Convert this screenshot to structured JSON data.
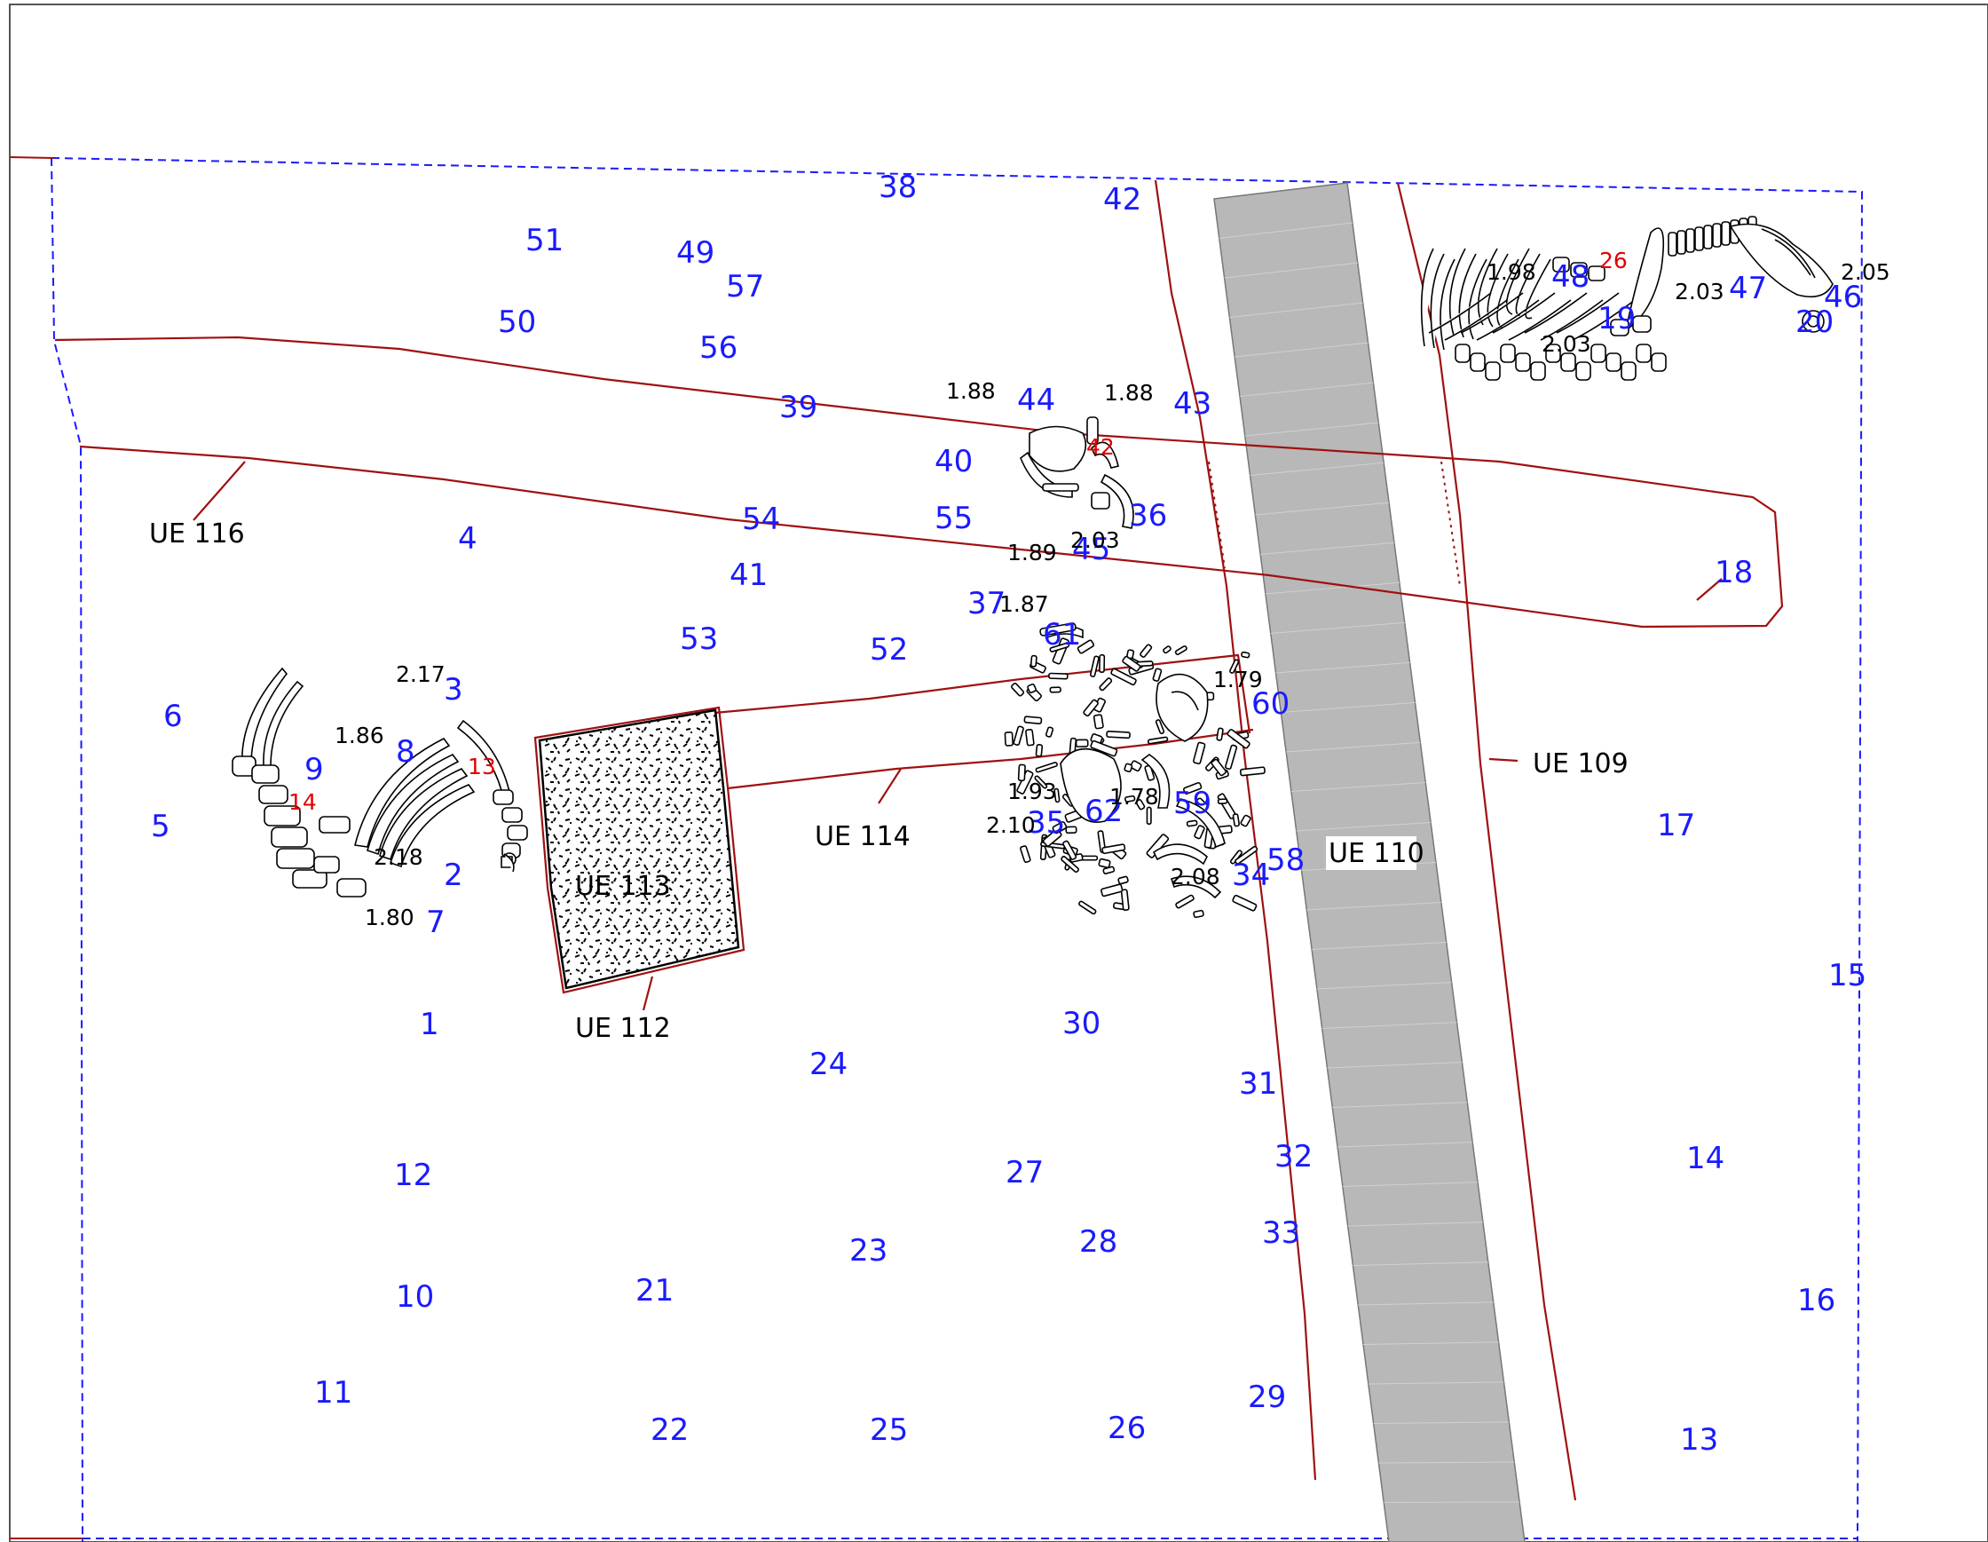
{
  "colors": {
    "point_number": "#1a1aff",
    "find_number": "#e00000",
    "elevation": "#000000",
    "unit_boundary": "#a01010",
    "excavation_limit": "#1a1aff",
    "pipe_fill": "#b8b8b8"
  },
  "units": [
    {
      "id": "ue116",
      "label": "UE 116"
    },
    {
      "id": "ue114",
      "label": "UE 114"
    },
    {
      "id": "ue113",
      "label": "UE 113"
    },
    {
      "id": "ue112",
      "label": "UE 112"
    },
    {
      "id": "ue110",
      "label": "UE 110"
    },
    {
      "id": "ue109",
      "label": "UE 109"
    }
  ],
  "survey_points": [
    "1",
    "2",
    "3",
    "4",
    "5",
    "6",
    "7",
    "8",
    "9",
    "10",
    "11",
    "12",
    "13",
    "14",
    "15",
    "16",
    "17",
    "18",
    "19",
    "20",
    "21",
    "22",
    "23",
    "24",
    "25",
    "26",
    "27",
    "28",
    "29",
    "30",
    "31",
    "32",
    "33",
    "34",
    "35",
    "36",
    "37",
    "38",
    "39",
    "40",
    "41",
    "42",
    "43",
    "44",
    "45",
    "46",
    "47",
    "48",
    "49",
    "50",
    "51",
    "52",
    "53",
    "54",
    "55",
    "56",
    "57",
    "58",
    "59",
    "60",
    "61",
    "62"
  ],
  "finds": [
    "13",
    "14",
    "26",
    "42"
  ],
  "elevations": [
    "2.17",
    "1.86",
    "2.18",
    "1.80",
    "1.88",
    "1.88",
    "2.03",
    "1.89",
    "1.87",
    "1.79",
    "1.93",
    "1.78",
    "2.10",
    "2.08",
    "1.98",
    "2.03",
    "2.03",
    "2.05"
  ],
  "icons": [
    "skeleton-west",
    "skeleton-center",
    "skeleton-northeast",
    "gravel-fill",
    "concrete-pipe"
  ]
}
